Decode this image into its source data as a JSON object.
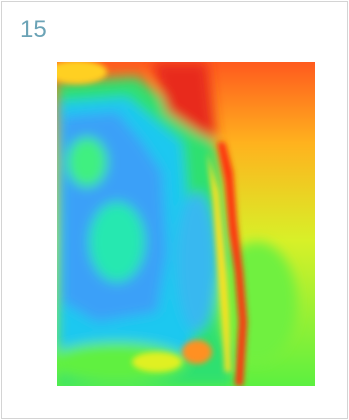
{
  "label": "15"
}
